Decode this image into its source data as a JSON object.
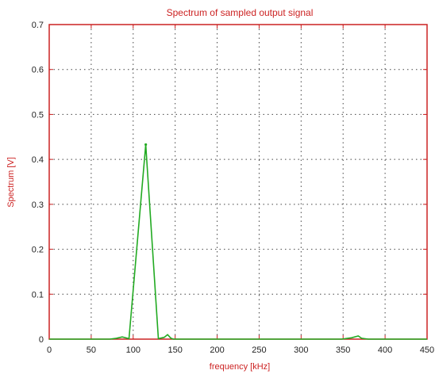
{
  "chart_data": {
    "type": "line",
    "title": "Spectrum of sampled output signal",
    "xlabel": "frequency [kHz]",
    "ylabel": "Spectrum [V]",
    "xlim": [
      0,
      450
    ],
    "ylim": [
      0,
      0.7
    ],
    "x_ticks": [
      0,
      50,
      100,
      150,
      200,
      250,
      300,
      350,
      400,
      450
    ],
    "y_ticks": [
      0,
      0.1,
      0.2,
      0.3,
      0.4,
      0.5,
      0.6,
      0.7
    ],
    "x_tick_labels": [
      "0",
      "50",
      "100",
      "150",
      "200",
      "250",
      "300",
      "350",
      "400",
      "450"
    ],
    "y_tick_labels": [
      "0",
      "0.1",
      "0.2",
      "0.3",
      "0.4",
      "0.5",
      "0.6",
      "0.7"
    ],
    "grid": true,
    "series": [
      {
        "color": "#22aa22",
        "x": [
          0,
          72,
          80,
          87,
          95,
          115,
          130,
          137,
          141,
          145,
          148,
          155,
          200,
          250,
          300,
          348,
          360,
          368,
          372,
          380,
          385,
          390,
          420,
          450
        ],
        "y": [
          0,
          0,
          0.002,
          0.005,
          0.001,
          0.433,
          0.001,
          0.004,
          0.01,
          0.002,
          0,
          0,
          0,
          0,
          0,
          0,
          0.003,
          0.007,
          0.002,
          0,
          0,
          0,
          0,
          0
        ]
      }
    ],
    "colors": {
      "axes": "#cc2222",
      "grid": "#444444",
      "tick_label": "#222222",
      "series": "#22aa22"
    }
  }
}
